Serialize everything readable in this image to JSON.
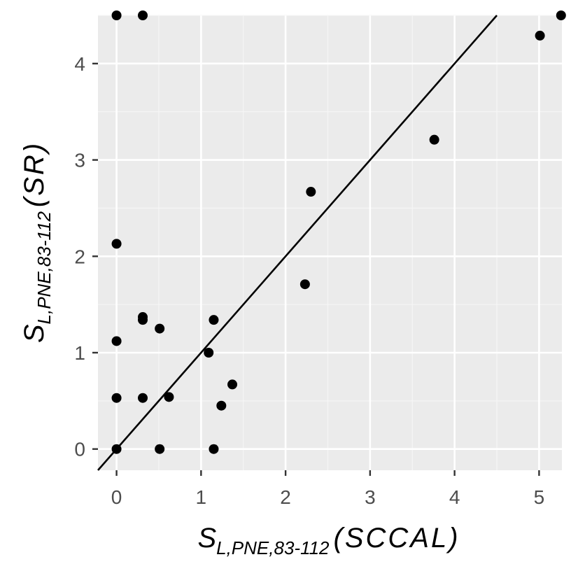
{
  "colors": {
    "panel": "#ebebeb",
    "grid_major": "#ffffff",
    "grid_minor": "#f5f5f5",
    "point": "#000000",
    "line": "#000000",
    "tick": "#333333",
    "tick_label": "#4d4d4d"
  },
  "chart_data": {
    "type": "scatter",
    "xlabel": {
      "main": "S",
      "sub": "L,PNE,83-112",
      "paren": "(SCCAL)"
    },
    "ylabel": {
      "main": "S",
      "sub": "L,PNE,83-112",
      "paren": "(SR)"
    },
    "xlim": [
      -0.22,
      5.27
    ],
    "ylim": [
      -0.22,
      4.5
    ],
    "x_ticks": [
      0,
      1,
      2,
      3,
      4,
      5
    ],
    "y_ticks": [
      0,
      1,
      2,
      3,
      4
    ],
    "x_tick_labels": [
      "0",
      "1",
      "2",
      "3",
      "4",
      "5"
    ],
    "y_tick_labels": [
      "0",
      "1",
      "2",
      "3",
      "4"
    ],
    "grid": true,
    "points": [
      {
        "x": 0,
        "y": 0
      },
      {
        "x": 0,
        "y": 0.53
      },
      {
        "x": 0,
        "y": 1.12
      },
      {
        "x": 0,
        "y": 2.13
      },
      {
        "x": 0,
        "y": 4.5
      },
      {
        "x": 0.31,
        "y": 4.5
      },
      {
        "x": 0.31,
        "y": 1.37
      },
      {
        "x": 0.31,
        "y": 1.34
      },
      {
        "x": 0.31,
        "y": 0.53
      },
      {
        "x": 0.51,
        "y": 1.25
      },
      {
        "x": 0.51,
        "y": 0
      },
      {
        "x": 0.62,
        "y": 0.54
      },
      {
        "x": 1.09,
        "y": 1.0
      },
      {
        "x": 1.15,
        "y": 1.34
      },
      {
        "x": 1.15,
        "y": 0
      },
      {
        "x": 1.24,
        "y": 0.45
      },
      {
        "x": 1.37,
        "y": 0.67
      },
      {
        "x": 2.23,
        "y": 1.71
      },
      {
        "x": 2.3,
        "y": 2.67
      },
      {
        "x": 3.76,
        "y": 3.21
      },
      {
        "x": 5.01,
        "y": 4.29
      },
      {
        "x": 5.26,
        "y": 4.5
      }
    ],
    "reference_line": {
      "slope": 1,
      "intercept": 0
    }
  }
}
